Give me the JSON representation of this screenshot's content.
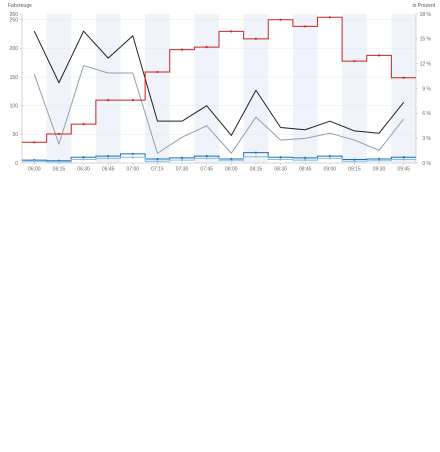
{
  "chart_data": {
    "type": "line",
    "ylabel_left": "Fahrzeuge",
    "ylabel_right": "in Prozent",
    "x": [
      "06:00",
      "06:15",
      "06:30",
      "06:45",
      "07:00",
      "07:15",
      "07:30",
      "07:45",
      "08:00",
      "08:15",
      "08:30",
      "08:45",
      "09:00",
      "09:15",
      "09:30",
      "09:45"
    ],
    "y_left": {
      "ticks": [
        "0",
        "50",
        "100",
        "150",
        "200",
        "250",
        "260"
      ],
      "range": [
        0,
        260
      ]
    },
    "y_right": {
      "ticks": [
        "0 %",
        "3 %",
        "6 %",
        "9 %",
        "12 %",
        "15 %",
        "18 %"
      ],
      "range": [
        0,
        18
      ]
    },
    "grid": true,
    "series": [
      {
        "axis": "left",
        "style": "line",
        "color": "#222222",
        "values": [
          230,
          140,
          230,
          183,
          222,
          73,
          73,
          100,
          48,
          127,
          62,
          58,
          73,
          56,
          52,
          106
        ]
      },
      {
        "axis": "left",
        "style": "line",
        "color": "#8fa1ad",
        "values": [
          155,
          33,
          170,
          157,
          157,
          17,
          45,
          65,
          17,
          80,
          40,
          43,
          52,
          40,
          22,
          77
        ]
      },
      {
        "axis": "left",
        "style": "step",
        "color": "#1f6fb5",
        "values": [
          5,
          4,
          10,
          12,
          16,
          7,
          9,
          12,
          7,
          18,
          10,
          9,
          12,
          6,
          7,
          10
        ]
      },
      {
        "axis": "left",
        "style": "step",
        "color": "#7fbfe8",
        "values": [
          3,
          2,
          6,
          8,
          10,
          3,
          5,
          8,
          4,
          11,
          6,
          5,
          8,
          3,
          4,
          6
        ]
      },
      {
        "axis": "right",
        "style": "step",
        "color": "#cc2222",
        "values": [
          2.5,
          3.5,
          4.7,
          7.6,
          7.6,
          11,
          13.7,
          14,
          15.9,
          15,
          17.3,
          16.5,
          17.6,
          12.3,
          13,
          10.3
        ]
      }
    ]
  }
}
